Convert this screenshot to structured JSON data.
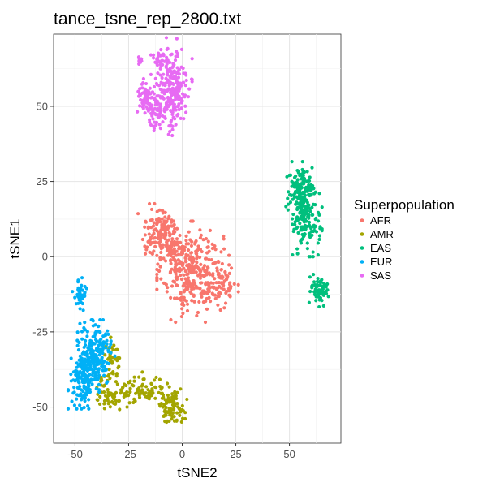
{
  "chart_data": {
    "type": "scatter",
    "title": "tance_tsne_rep_2800.txt",
    "xlabel": "tSNE2",
    "ylabel": "tSNE1",
    "xlim": [
      -60,
      74
    ],
    "ylim": [
      -62,
      74
    ],
    "x_ticks": [
      -50,
      -25,
      0,
      25,
      50
    ],
    "x_tick_labels": [
      "-50",
      "-25",
      "0",
      "25",
      "50"
    ],
    "y_ticks": [
      -50,
      -25,
      0,
      25,
      50
    ],
    "y_tick_labels": [
      "-50",
      "-25",
      "0",
      "25",
      "50"
    ],
    "grid": true,
    "legend": {
      "title": "Superpopulation",
      "placement": "right"
    },
    "series": [
      {
        "name": "AFR",
        "color": "#F8766D",
        "clusters": [
          {
            "cx": 5,
            "cy": -5,
            "sx": 7,
            "sy": 7,
            "n": 320
          },
          {
            "cx": -11,
            "cy": 8,
            "sx": 4,
            "sy": 4,
            "n": 100
          },
          {
            "cx": -4,
            "cy": 3,
            "sx": 3,
            "sy": 4,
            "n": 70
          },
          {
            "cx": 19,
            "cy": -9,
            "sx": 3,
            "sy": 3,
            "n": 60
          },
          {
            "cx": -7,
            "cy": 12,
            "sx": 3,
            "sy": 2,
            "n": 20
          }
        ]
      },
      {
        "name": "AMR",
        "color": "#A3A500",
        "clusters": [
          {
            "cx": -5,
            "cy": -50,
            "sx": 3,
            "sy": 2.5,
            "n": 90
          },
          {
            "cx": -18,
            "cy": -44,
            "sx": 5,
            "sy": 2.5,
            "n": 80
          },
          {
            "cx": -34,
            "cy": -45,
            "sx": 4,
            "sy": 3,
            "n": 60
          },
          {
            "cx": -33,
            "cy": -34,
            "sx": 2,
            "sy": 3,
            "n": 40
          }
        ]
      },
      {
        "name": "EAS",
        "color": "#00BF7D",
        "clusters": [
          {
            "cx": 55,
            "cy": 22,
            "sx": 3,
            "sy": 4,
            "n": 130
          },
          {
            "cx": 58,
            "cy": 12,
            "sx": 3,
            "sy": 5,
            "n": 140
          },
          {
            "cx": 64,
            "cy": -11,
            "sx": 2,
            "sy": 2.5,
            "n": 70
          }
        ]
      },
      {
        "name": "EUR",
        "color": "#00B0F6",
        "clusters": [
          {
            "cx": -41,
            "cy": -33,
            "sx": 4,
            "sy": 5,
            "n": 220
          },
          {
            "cx": -46,
            "cy": -41,
            "sx": 3,
            "sy": 4,
            "n": 120
          },
          {
            "cx": -48,
            "cy": -13,
            "sx": 1.5,
            "sy": 2.5,
            "n": 40
          }
        ]
      },
      {
        "name": "SAS",
        "color": "#E76BF3",
        "clusters": [
          {
            "cx": -5,
            "cy": 56,
            "sx": 4,
            "sy": 7,
            "n": 240
          },
          {
            "cx": -17,
            "cy": 53,
            "sx": 2,
            "sy": 3,
            "n": 50
          },
          {
            "cx": -13,
            "cy": 47,
            "sx": 3,
            "sy": 3,
            "n": 50
          },
          {
            "cx": -10,
            "cy": 66,
            "sx": 1.5,
            "sy": 1.5,
            "n": 20
          },
          {
            "cx": -20,
            "cy": 65,
            "sx": 0.8,
            "sy": 1,
            "n": 10
          }
        ]
      }
    ]
  }
}
